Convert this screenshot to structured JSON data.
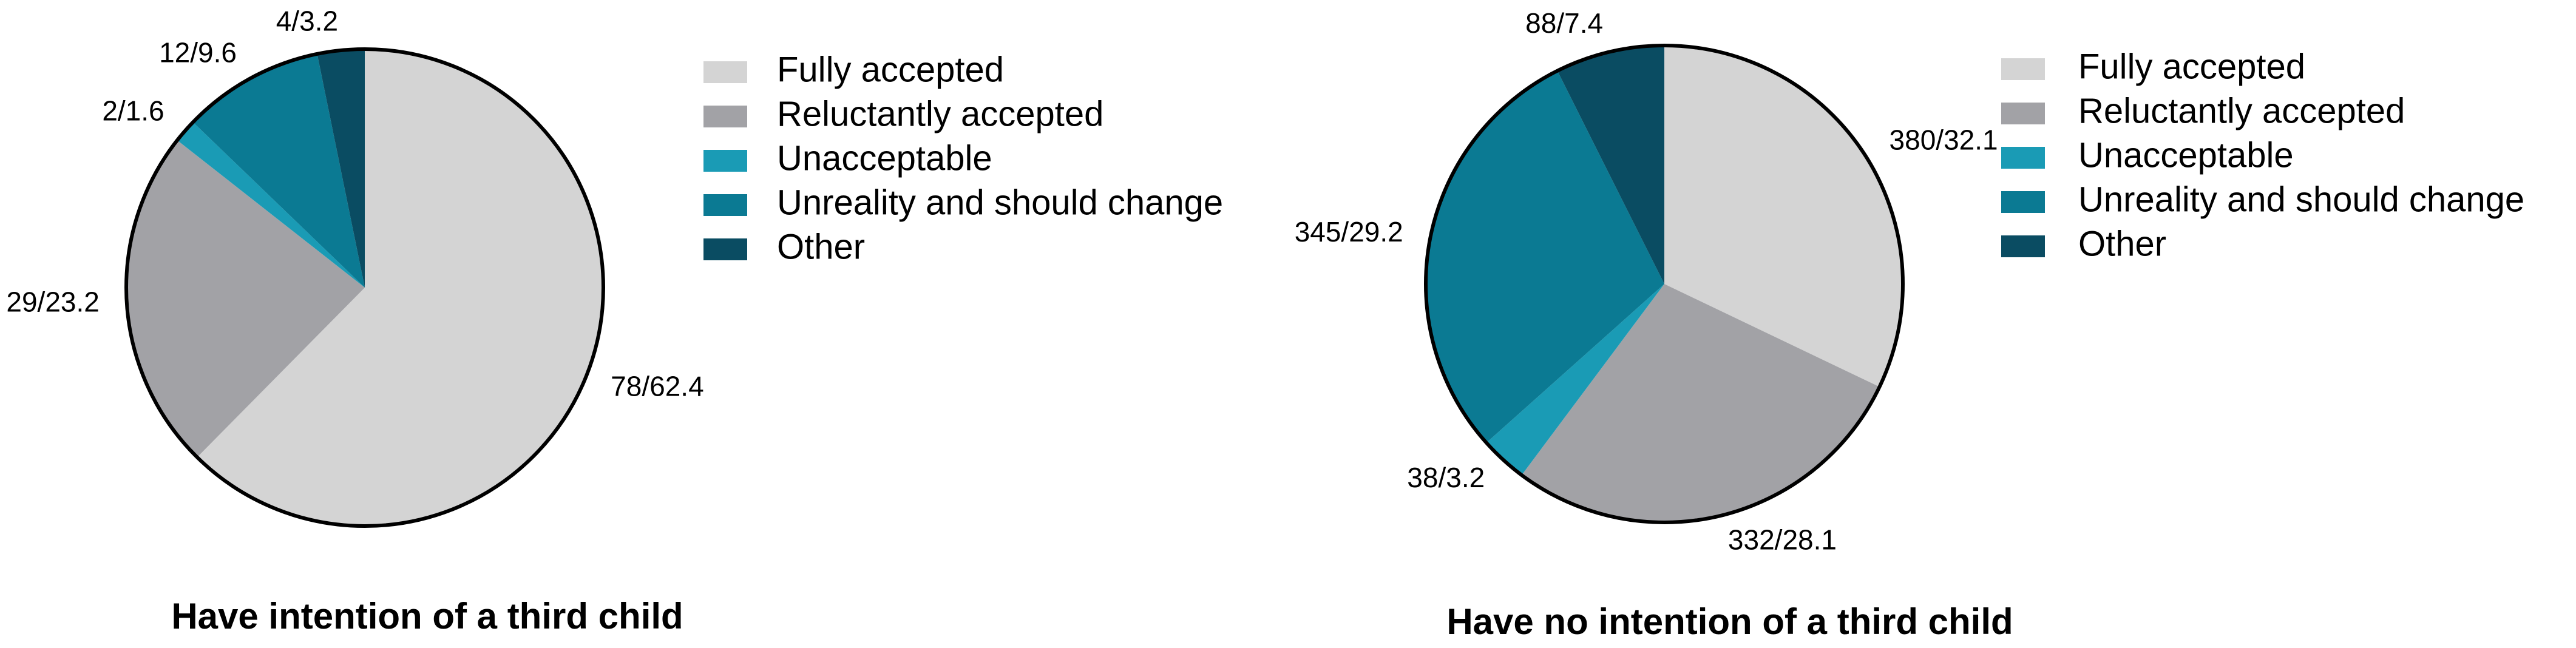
{
  "chart_data": [
    {
      "type": "pie",
      "title": "Have intention of a third child",
      "categories": [
        "Fully accepted",
        "Reluctantly accepted",
        "Unacceptable",
        "Unreality and should change",
        "Other"
      ],
      "values": [
        62.4,
        23.2,
        1.6,
        9.6,
        3.2
      ],
      "value_labels": [
        "78/62.4",
        "29/23.2",
        "2/1.6",
        "12/9.6",
        "4/3.2"
      ],
      "colors": [
        "#d4d4d4",
        "#a2a2a6",
        "#1a9bb5",
        "#0b7a93",
        "#0a4c62"
      ]
    },
    {
      "type": "pie",
      "title": "Have no intention of a third child",
      "categories": [
        "Fully accepted",
        "Reluctantly accepted",
        "Unacceptable",
        "Unreality and should change",
        "Other"
      ],
      "values": [
        32.1,
        28.1,
        3.2,
        29.2,
        7.4
      ],
      "value_labels": [
        "380/32.1",
        "332/28.1",
        "38/3.2",
        "345/29.2",
        "88/7.4"
      ],
      "colors": [
        "#d4d4d4",
        "#a2a2a6",
        "#1a9bb5",
        "#0b7a93",
        "#0a4c62"
      ]
    }
  ]
}
